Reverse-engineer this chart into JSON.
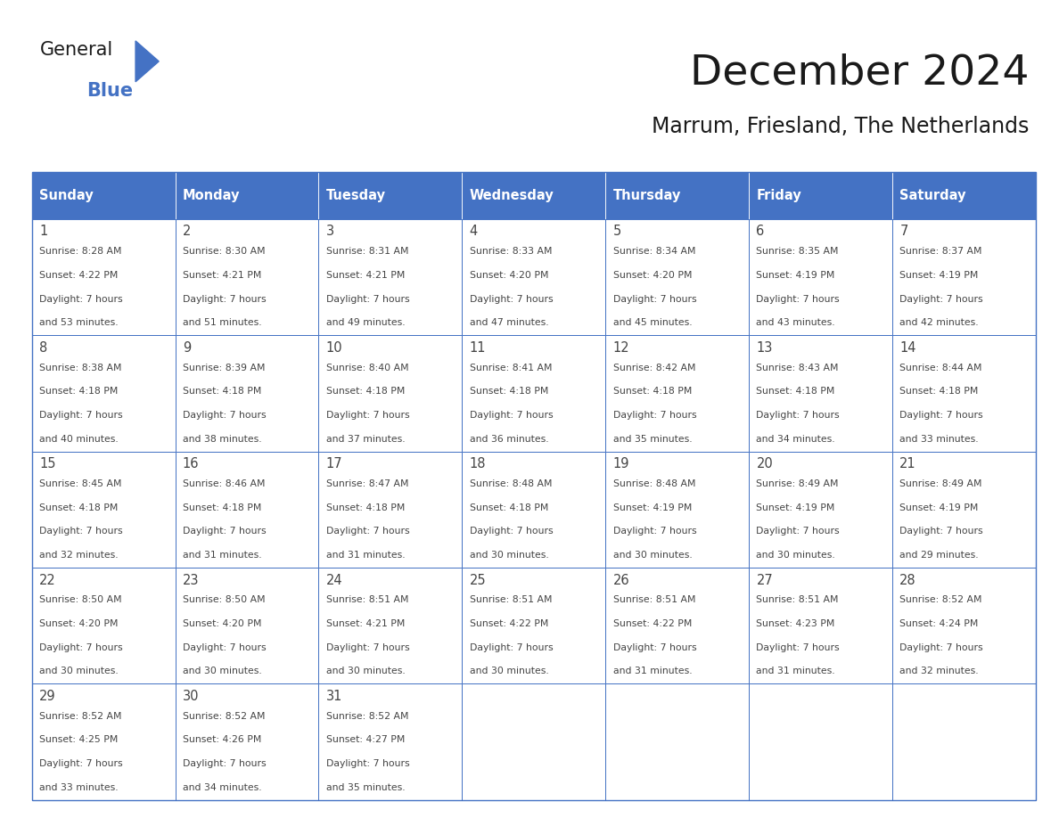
{
  "title": "December 2024",
  "subtitle": "Marrum, Friesland, The Netherlands",
  "days_of_week": [
    "Sunday",
    "Monday",
    "Tuesday",
    "Wednesday",
    "Thursday",
    "Friday",
    "Saturday"
  ],
  "header_bg": "#4472C4",
  "header_text": "#FFFFFF",
  "cell_bg": "#FFFFFF",
  "cell_border": "#4472C4",
  "text_color": "#444444",
  "title_color": "#1a1a1a",
  "logo_black": "#1a1a1a",
  "logo_blue": "#4472C4",
  "calendar": [
    [
      {
        "day": 1,
        "sunrise": "8:28 AM",
        "sunset": "4:22 PM",
        "daylight_suffix": "53 minutes."
      },
      {
        "day": 2,
        "sunrise": "8:30 AM",
        "sunset": "4:21 PM",
        "daylight_suffix": "51 minutes."
      },
      {
        "day": 3,
        "sunrise": "8:31 AM",
        "sunset": "4:21 PM",
        "daylight_suffix": "49 minutes."
      },
      {
        "day": 4,
        "sunrise": "8:33 AM",
        "sunset": "4:20 PM",
        "daylight_suffix": "47 minutes."
      },
      {
        "day": 5,
        "sunrise": "8:34 AM",
        "sunset": "4:20 PM",
        "daylight_suffix": "45 minutes."
      },
      {
        "day": 6,
        "sunrise": "8:35 AM",
        "sunset": "4:19 PM",
        "daylight_suffix": "43 minutes."
      },
      {
        "day": 7,
        "sunrise": "8:37 AM",
        "sunset": "4:19 PM",
        "daylight_suffix": "42 minutes."
      }
    ],
    [
      {
        "day": 8,
        "sunrise": "8:38 AM",
        "sunset": "4:18 PM",
        "daylight_suffix": "40 minutes."
      },
      {
        "day": 9,
        "sunrise": "8:39 AM",
        "sunset": "4:18 PM",
        "daylight_suffix": "38 minutes."
      },
      {
        "day": 10,
        "sunrise": "8:40 AM",
        "sunset": "4:18 PM",
        "daylight_suffix": "37 minutes."
      },
      {
        "day": 11,
        "sunrise": "8:41 AM",
        "sunset": "4:18 PM",
        "daylight_suffix": "36 minutes."
      },
      {
        "day": 12,
        "sunrise": "8:42 AM",
        "sunset": "4:18 PM",
        "daylight_suffix": "35 minutes."
      },
      {
        "day": 13,
        "sunrise": "8:43 AM",
        "sunset": "4:18 PM",
        "daylight_suffix": "34 minutes."
      },
      {
        "day": 14,
        "sunrise": "8:44 AM",
        "sunset": "4:18 PM",
        "daylight_suffix": "33 minutes."
      }
    ],
    [
      {
        "day": 15,
        "sunrise": "8:45 AM",
        "sunset": "4:18 PM",
        "daylight_suffix": "32 minutes."
      },
      {
        "day": 16,
        "sunrise": "8:46 AM",
        "sunset": "4:18 PM",
        "daylight_suffix": "31 minutes."
      },
      {
        "day": 17,
        "sunrise": "8:47 AM",
        "sunset": "4:18 PM",
        "daylight_suffix": "31 minutes."
      },
      {
        "day": 18,
        "sunrise": "8:48 AM",
        "sunset": "4:18 PM",
        "daylight_suffix": "30 minutes."
      },
      {
        "day": 19,
        "sunrise": "8:48 AM",
        "sunset": "4:19 PM",
        "daylight_suffix": "30 minutes."
      },
      {
        "day": 20,
        "sunrise": "8:49 AM",
        "sunset": "4:19 PM",
        "daylight_suffix": "30 minutes."
      },
      {
        "day": 21,
        "sunrise": "8:49 AM",
        "sunset": "4:19 PM",
        "daylight_suffix": "29 minutes."
      }
    ],
    [
      {
        "day": 22,
        "sunrise": "8:50 AM",
        "sunset": "4:20 PM",
        "daylight_suffix": "30 minutes."
      },
      {
        "day": 23,
        "sunrise": "8:50 AM",
        "sunset": "4:20 PM",
        "daylight_suffix": "30 minutes."
      },
      {
        "day": 24,
        "sunrise": "8:51 AM",
        "sunset": "4:21 PM",
        "daylight_suffix": "30 minutes."
      },
      {
        "day": 25,
        "sunrise": "8:51 AM",
        "sunset": "4:22 PM",
        "daylight_suffix": "30 minutes."
      },
      {
        "day": 26,
        "sunrise": "8:51 AM",
        "sunset": "4:22 PM",
        "daylight_suffix": "31 minutes."
      },
      {
        "day": 27,
        "sunrise": "8:51 AM",
        "sunset": "4:23 PM",
        "daylight_suffix": "31 minutes."
      },
      {
        "day": 28,
        "sunrise": "8:52 AM",
        "sunset": "4:24 PM",
        "daylight_suffix": "32 minutes."
      }
    ],
    [
      {
        "day": 29,
        "sunrise": "8:52 AM",
        "sunset": "4:25 PM",
        "daylight_suffix": "33 minutes."
      },
      {
        "day": 30,
        "sunrise": "8:52 AM",
        "sunset": "4:26 PM",
        "daylight_suffix": "34 minutes."
      },
      {
        "day": 31,
        "sunrise": "8:52 AM",
        "sunset": "4:27 PM",
        "daylight_suffix": "35 minutes."
      },
      null,
      null,
      null,
      null
    ]
  ]
}
